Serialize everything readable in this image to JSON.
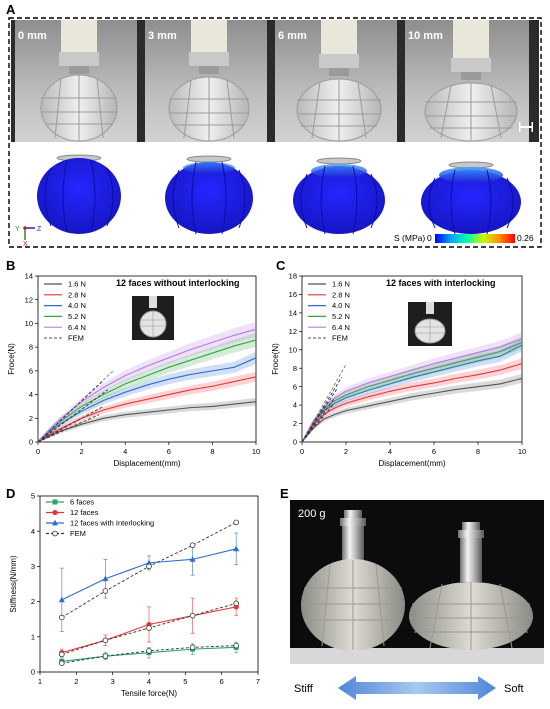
{
  "panels": {
    "A": {
      "letter": "A",
      "photo_labels": [
        "0 mm",
        "3 mm",
        "6 mm",
        "10 mm"
      ],
      "axes_triad": {
        "y": "Y",
        "z": "Z",
        "x": "X"
      },
      "colorbar": {
        "label": "S (MPa)",
        "min": "0",
        "max": "0.26"
      }
    },
    "B": {
      "letter": "B"
    },
    "C": {
      "letter": "C"
    },
    "D": {
      "letter": "D"
    },
    "E": {
      "letter": "E",
      "weight_label": "200 g",
      "stiff_label": "Stiff",
      "soft_label": "Soft"
    }
  },
  "chart_data": [
    {
      "id": "B",
      "type": "line",
      "title": "12 faces without interlocking",
      "xlabel": "Displacement(mm)",
      "ylabel": "Froce(N)",
      "xlim": [
        0,
        10
      ],
      "ylim": [
        0,
        14
      ],
      "xticks": [
        "0",
        "2",
        "4",
        "6",
        "8",
        "10"
      ],
      "yticks": [
        "0",
        "2",
        "4",
        "6",
        "8",
        "10",
        "12",
        "14"
      ],
      "legend": "top-left",
      "series": [
        {
          "name": "1.6 N",
          "color": "#555555",
          "x": [
            0,
            0.5,
            1,
            2,
            3,
            4,
            5,
            6,
            7,
            8,
            9,
            10
          ],
          "y": [
            0,
            0.5,
            0.9,
            1.5,
            2.0,
            2.3,
            2.5,
            2.7,
            2.9,
            3.0,
            3.2,
            3.4
          ]
        },
        {
          "name": "2.8 N",
          "color": "#e8363b",
          "x": [
            0,
            0.5,
            1,
            2,
            3,
            4,
            5,
            6,
            7,
            8,
            9,
            10
          ],
          "y": [
            0,
            0.6,
            1.1,
            2.0,
            2.7,
            3.2,
            3.6,
            4.0,
            4.4,
            4.7,
            5.1,
            5.5
          ]
        },
        {
          "name": "4.0 N",
          "color": "#2e6ccf",
          "x": [
            0,
            0.5,
            1,
            2,
            3,
            4,
            5,
            6,
            7,
            8,
            9,
            10
          ],
          "y": [
            0,
            0.8,
            1.5,
            2.6,
            3.5,
            4.2,
            4.8,
            5.3,
            5.7,
            6.0,
            6.3,
            7.1
          ]
        },
        {
          "name": "5.2 N",
          "color": "#37a34a",
          "x": [
            0,
            0.5,
            1,
            2,
            3,
            4,
            5,
            6,
            7,
            8,
            9,
            10
          ],
          "y": [
            0,
            0.9,
            1.7,
            3.0,
            4.0,
            4.9,
            5.6,
            6.3,
            6.9,
            7.5,
            8.1,
            8.6
          ]
        },
        {
          "name": "6.4 N",
          "color": "#b57be0",
          "x": [
            0,
            0.5,
            1,
            2,
            3,
            4,
            5,
            6,
            7,
            8,
            9,
            10
          ],
          "y": [
            0,
            1.0,
            1.9,
            3.4,
            4.6,
            5.6,
            6.4,
            7.1,
            7.8,
            8.4,
            9.0,
            9.5
          ]
        },
        {
          "name": "FEM",
          "color": "#777777",
          "dashed": true,
          "x": [
            0,
            3.5
          ],
          "y": [
            0,
            6.1
          ]
        }
      ],
      "extra_fem": [
        {
          "x": [
            0,
            3.0
          ],
          "y": [
            0,
            5.2
          ]
        },
        {
          "x": [
            0,
            3.2
          ],
          "y": [
            0,
            4.4
          ]
        },
        {
          "x": [
            0,
            3.0
          ],
          "y": [
            0,
            3.0
          ]
        },
        {
          "x": [
            0,
            2.8
          ],
          "y": [
            0,
            2.3
          ]
        }
      ]
    },
    {
      "id": "C",
      "type": "line",
      "title": "12 faces with interlocking",
      "xlabel": "Displacement(mm)",
      "ylabel": "Froce(N)",
      "xlim": [
        0,
        10
      ],
      "ylim": [
        0,
        18
      ],
      "xticks": [
        "0",
        "2",
        "4",
        "6",
        "8",
        "10"
      ],
      "yticks": [
        "0",
        "2",
        "4",
        "6",
        "8",
        "10",
        "12",
        "14",
        "16",
        "18"
      ],
      "legend": "top-left",
      "series": [
        {
          "name": "1.6 N",
          "color": "#555555",
          "x": [
            0,
            0.5,
            1,
            1.5,
            2,
            3,
            4,
            5,
            6,
            7,
            8,
            9,
            10
          ],
          "y": [
            0,
            1.5,
            2.5,
            3.0,
            3.4,
            3.9,
            4.4,
            4.9,
            5.3,
            5.7,
            6.0,
            6.3,
            6.9
          ]
        },
        {
          "name": "2.8 N",
          "color": "#e8363b",
          "x": [
            0,
            0.5,
            1,
            1.5,
            2,
            3,
            4,
            5,
            6,
            7,
            8,
            9,
            10
          ],
          "y": [
            0,
            1.8,
            3.0,
            3.7,
            4.2,
            4.9,
            5.5,
            6.0,
            6.4,
            6.9,
            7.3,
            7.8,
            8.5
          ]
        },
        {
          "name": "4.0 N",
          "color": "#2e6ccf",
          "x": [
            0,
            0.5,
            1,
            1.5,
            2,
            3,
            4,
            5,
            6,
            7,
            8,
            9,
            10
          ],
          "y": [
            0,
            2.0,
            3.4,
            4.2,
            4.8,
            5.6,
            6.3,
            7.0,
            7.6,
            8.2,
            8.8,
            9.3,
            10.5
          ]
        },
        {
          "name": "5.2 N",
          "color": "#37a34a",
          "x": [
            0,
            0.5,
            1,
            1.5,
            2,
            3,
            4,
            5,
            6,
            7,
            8,
            9,
            10
          ],
          "y": [
            0,
            2.1,
            3.6,
            4.5,
            5.1,
            6.0,
            6.7,
            7.4,
            8.0,
            8.6,
            9.2,
            9.8,
            10.8
          ]
        },
        {
          "name": "6.4 N",
          "color": "#b57be0",
          "x": [
            0,
            0.5,
            1,
            1.5,
            2,
            3,
            4,
            5,
            6,
            7,
            8,
            9,
            10
          ],
          "y": [
            0,
            2.2,
            3.8,
            4.8,
            5.5,
            6.4,
            7.1,
            7.8,
            8.5,
            9.1,
            9.7,
            10.3,
            11.2
          ]
        },
        {
          "name": "FEM",
          "color": "#777777",
          "dashed": true,
          "x": [
            0,
            2.0
          ],
          "y": [
            0,
            8.4
          ]
        }
      ],
      "extra_fem": [
        {
          "x": [
            0,
            1.8
          ],
          "y": [
            0,
            7.0
          ]
        },
        {
          "x": [
            0,
            1.6
          ],
          "y": [
            0,
            5.8
          ]
        },
        {
          "x": [
            0,
            1.5
          ],
          "y": [
            0,
            4.8
          ]
        },
        {
          "x": [
            0,
            1.4
          ],
          "y": [
            0,
            4.0
          ]
        }
      ]
    },
    {
      "id": "D",
      "type": "line",
      "title": "",
      "xlabel": "Tensile force(N)",
      "ylabel": "Stiffness(N/mm)",
      "xlim": [
        1,
        7
      ],
      "ylim": [
        0,
        5
      ],
      "xticks": [
        "1",
        "2",
        "3",
        "4",
        "5",
        "6",
        "7"
      ],
      "yticks": [
        "0",
        "1",
        "2",
        "3",
        "4",
        "5"
      ],
      "legend": "top-left",
      "categories": [
        1.6,
        2.8,
        4.0,
        5.2,
        6.4
      ],
      "series": [
        {
          "name": "6 faces",
          "color": "#2aa36b",
          "marker": "square",
          "values": [
            0.3,
            0.45,
            0.55,
            0.65,
            0.7
          ],
          "errors": [
            0.1,
            0.1,
            0.15,
            0.15,
            0.15
          ]
        },
        {
          "name": "12 faces",
          "color": "#e8363b",
          "marker": "circle",
          "values": [
            0.55,
            0.9,
            1.35,
            1.6,
            1.85
          ],
          "errors": [
            0.1,
            0.15,
            0.5,
            0.5,
            0.25
          ]
        },
        {
          "name": "12 faces with Interlocking",
          "color": "#2e6ccf",
          "marker": "triangle",
          "values": [
            2.05,
            2.65,
            3.1,
            3.2,
            3.5
          ],
          "errors": [
            0.9,
            0.55,
            0.2,
            0.45,
            0.45
          ]
        },
        {
          "name": "FEM",
          "color": "#333333",
          "marker": "open-circle",
          "dashed": true,
          "values": [
            1.55,
            2.3,
            3.0,
            3.6,
            4.25
          ]
        }
      ],
      "extra_fem": [
        {
          "values": [
            0.5,
            0.9,
            1.25,
            1.6,
            1.95
          ]
        },
        {
          "values": [
            0.25,
            0.45,
            0.6,
            0.7,
            0.75
          ]
        }
      ]
    }
  ]
}
